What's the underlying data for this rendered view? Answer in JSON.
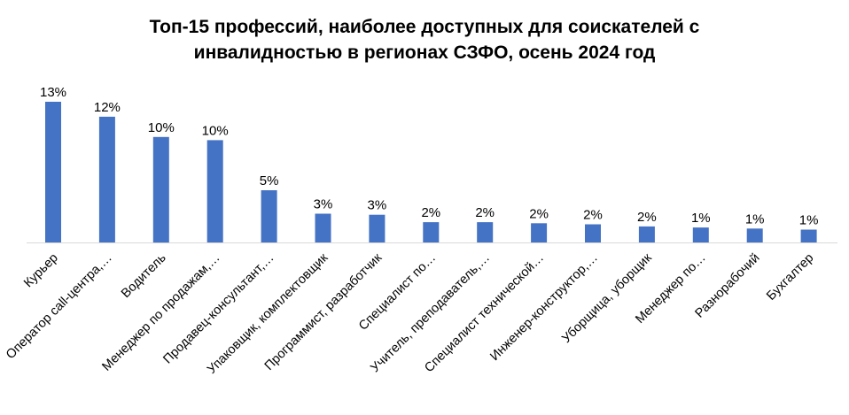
{
  "chart_data": {
    "type": "bar",
    "title_line1": "Топ-15 профессий,  наиболее доступных для соискателей с",
    "title_line2": "инвалидностью в регионах СЗФО, осень 2024 год",
    "categories": [
      "Курьер",
      "Оператор call-центра,…",
      "Водитель",
      "Менеджер по продажам,…",
      "Продавец-консультант,…",
      "Упаковщик, комплектовщик",
      "Программист, разработчик",
      "Специалист по…",
      "Учитель, преподаватель,…",
      "Специалист технической…",
      "Инженер-конструктор,…",
      "Уборщица, уборщик",
      "Менеджер по…",
      "Разнорабочий",
      "Бухгалтер"
    ],
    "values": [
      13.2,
      11.8,
      9.9,
      9.6,
      4.9,
      2.7,
      2.6,
      1.9,
      1.9,
      1.8,
      1.7,
      1.5,
      1.4,
      1.3,
      1.2
    ],
    "value_labels": [
      "13%",
      "12%",
      "10%",
      "10%",
      "5%",
      "3%",
      "3%",
      "2%",
      "2%",
      "2%",
      "2%",
      "2%",
      "1%",
      "1%",
      "1%"
    ],
    "colors": {
      "bar": "#4472C4",
      "axis": "#D9D9D9"
    },
    "ylim": [
      0,
      14
    ],
    "grid": false,
    "legend": "none"
  }
}
